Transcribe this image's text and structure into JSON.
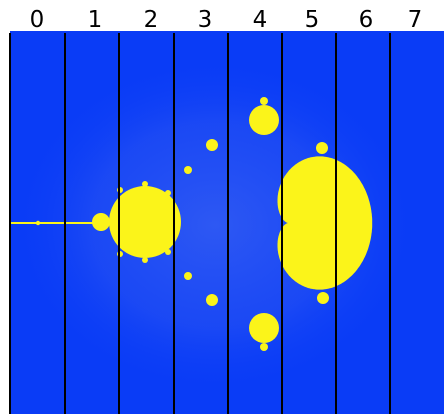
{
  "column_labels": [
    "0",
    "1",
    "2",
    "3",
    "4",
    "5",
    "6",
    "7"
  ],
  "colors": {
    "background": "#0a3cf6",
    "halo": "#2a55f2",
    "set_fill": "#fbf41a",
    "dividers": "#000000",
    "labels": "#000000"
  }
}
